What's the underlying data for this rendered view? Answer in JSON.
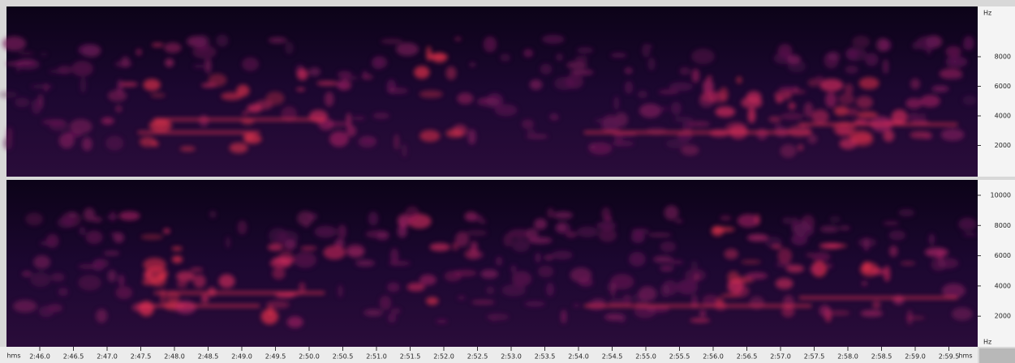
{
  "top_panel": {
    "unit": "Hz",
    "ticks": [
      "8000",
      "6000",
      "4000",
      "2000"
    ]
  },
  "bottom_panel": {
    "ticks": [
      "10000",
      "8000",
      "6000",
      "4000",
      "2000"
    ],
    "unit": "Hz"
  },
  "time_ruler": {
    "start_unit": "hms",
    "labels": [
      "2:46.0",
      "2:46.5",
      "2:47.0",
      "2:47.5",
      "2:48.0",
      "2:48.5",
      "2:49.0",
      "2:49.5",
      "2:50.0",
      "2:50.5",
      "2:51.0",
      "2:51.5",
      "2:52.0",
      "2:52.5",
      "2:53.0",
      "2:53.5",
      "2:54.0",
      "2:54.5",
      "2:55.0",
      "2:55.5",
      "2:56.0",
      "2:56.5",
      "2:57.0",
      "2:57.5",
      "2:58.0",
      "2:58.5",
      "2:59.0",
      "2:59.5"
    ],
    "end_unit": "hms"
  }
}
